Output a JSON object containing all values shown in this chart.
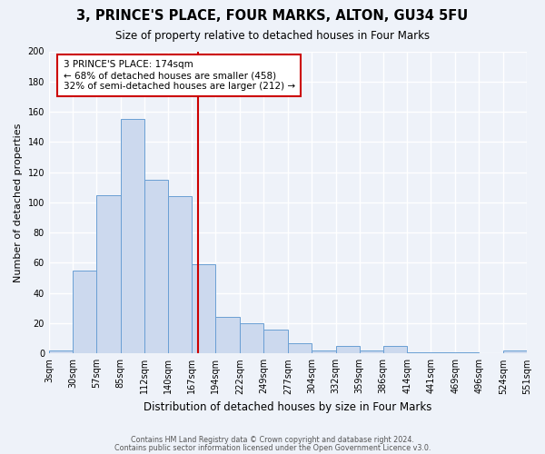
{
  "title": "3, PRINCE'S PLACE, FOUR MARKS, ALTON, GU34 5FU",
  "subtitle": "Size of property relative to detached houses in Four Marks",
  "xlabel": "Distribution of detached houses by size in Four Marks",
  "ylabel": "Number of detached properties",
  "bin_labels": [
    "3sqm",
    "30sqm",
    "57sqm",
    "85sqm",
    "112sqm",
    "140sqm",
    "167sqm",
    "194sqm",
    "222sqm",
    "249sqm",
    "277sqm",
    "304sqm",
    "332sqm",
    "359sqm",
    "386sqm",
    "414sqm",
    "441sqm",
    "469sqm",
    "496sqm",
    "524sqm",
    "551sqm"
  ],
  "bar_heights": [
    2,
    55,
    105,
    155,
    115,
    104,
    59,
    24,
    20,
    16,
    7,
    2,
    5,
    2,
    5,
    1,
    1,
    1,
    0,
    2
  ],
  "bar_color": "#ccd9ee",
  "bar_edge_color": "#6a9fd4",
  "ylim": [
    0,
    200
  ],
  "yticks": [
    0,
    20,
    40,
    60,
    80,
    100,
    120,
    140,
    160,
    180,
    200
  ],
  "property_value": 174,
  "bin_edges": [
    3,
    30,
    57,
    85,
    112,
    140,
    167,
    194,
    222,
    249,
    277,
    304,
    332,
    359,
    386,
    414,
    441,
    469,
    496,
    524,
    551
  ],
  "vline_color": "#cc0000",
  "annotation_title": "3 PRINCE'S PLACE: 174sqm",
  "annotation_line1": "← 68% of detached houses are smaller (458)",
  "annotation_line2": "32% of semi-detached houses are larger (212) →",
  "annotation_box_color": "#ffffff",
  "annotation_box_edge": "#cc0000",
  "footer_line1": "Contains HM Land Registry data © Crown copyright and database right 2024.",
  "footer_line2": "Contains public sector information licensed under the Open Government Licence v3.0.",
  "background_color": "#eef2f9",
  "grid_color": "#ffffff"
}
